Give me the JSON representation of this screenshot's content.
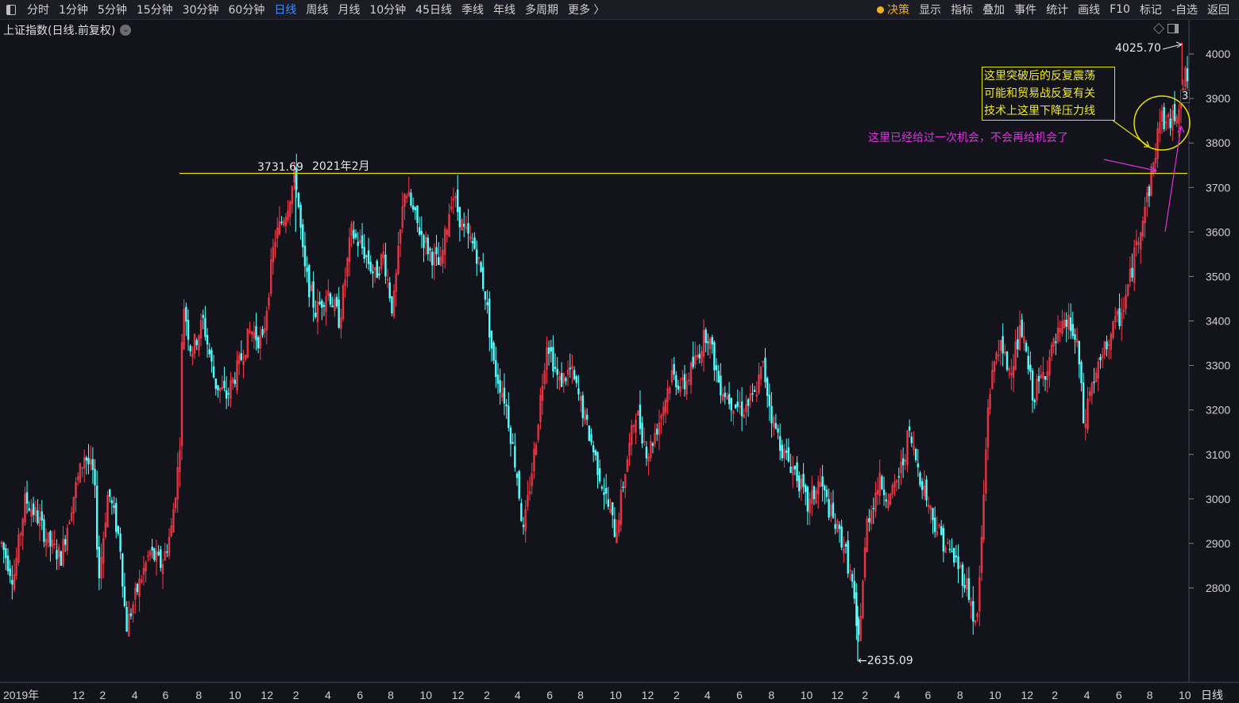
{
  "toolbar": {
    "left": [
      "分时",
      "1分钟",
      "5分钟",
      "15分钟",
      "30分钟",
      "60分钟",
      "日线",
      "周线",
      "月线",
      "10分钟",
      "45日线",
      "季线",
      "年线",
      "多周期",
      "更多 〉"
    ],
    "active": "日线",
    "right": [
      "决策",
      "显示",
      "指标",
      "叠加",
      "事件",
      "统计",
      "画线",
      "F10",
      "标记",
      "-自选",
      "返回"
    ]
  },
  "subtitle": "上证指数(日线.前复权)",
  "period_label": "日线",
  "annotations": {
    "high": "4025.70",
    "low": "2635.09",
    "resistance": "3731.69",
    "resistance_date": "2021年2月",
    "box_lines": [
      "这里突破后的反复震荡",
      "可能和贸易战反复有关",
      "技术上这里下降压力线"
    ],
    "pink_note": "这里已经给过一次机会，不会再给机会了",
    "clipped_label": "3"
  },
  "colors": {
    "up": "#ff3b4b",
    "down": "#54ffff",
    "line": "#e8e000",
    "pink": "#e030e0",
    "axis": "#d0d0d0"
  },
  "chart_data": {
    "type": "candlestick",
    "title": "上证指数(日线.前复权)",
    "ylim": [
      2600,
      4080
    ],
    "y_ticks": [
      2800,
      2900,
      3000,
      3100,
      3200,
      3300,
      3400,
      3500,
      3600,
      3700,
      3800,
      3900,
      4000
    ],
    "x_tick_labels": [
      {
        "label": "2019年",
        "x": 0.0
      },
      {
        "label": "12",
        "x": 0.065
      },
      {
        "label": "2",
        "x": 0.088
      },
      {
        "label": "4",
        "x": 0.115
      },
      {
        "label": "6",
        "x": 0.141
      },
      {
        "label": "8",
        "x": 0.169
      },
      {
        "label": "10",
        "x": 0.197
      },
      {
        "label": "12",
        "x": 0.224
      },
      {
        "label": "2",
        "x": 0.251
      },
      {
        "label": "4",
        "x": 0.278
      },
      {
        "label": "6",
        "x": 0.305
      },
      {
        "label": "8",
        "x": 0.331
      },
      {
        "label": "10",
        "x": 0.358
      },
      {
        "label": "12",
        "x": 0.385
      },
      {
        "label": "2",
        "x": 0.412
      },
      {
        "label": "4",
        "x": 0.438
      },
      {
        "label": "6",
        "x": 0.465
      },
      {
        "label": "8",
        "x": 0.491
      },
      {
        "label": "10",
        "x": 0.518
      },
      {
        "label": "12",
        "x": 0.545
      },
      {
        "label": "2",
        "x": 0.572
      },
      {
        "label": "4",
        "x": 0.598
      },
      {
        "label": "6",
        "x": 0.625
      },
      {
        "label": "8",
        "x": 0.652
      },
      {
        "label": "10",
        "x": 0.679
      },
      {
        "label": "12",
        "x": 0.705
      },
      {
        "label": "2",
        "x": 0.731
      },
      {
        "label": "4",
        "x": 0.758
      },
      {
        "label": "6",
        "x": 0.784
      },
      {
        "label": "8",
        "x": 0.811
      },
      {
        "label": "10",
        "x": 0.838
      },
      {
        "label": "12",
        "x": 0.865
      },
      {
        "label": "2",
        "x": 0.891
      },
      {
        "label": "4",
        "x": 0.918
      },
      {
        "label": "6",
        "x": 0.945
      },
      {
        "label": "8",
        "x": 0.971
      },
      {
        "label": "10",
        "x": 0.998
      }
    ],
    "x_tick_labels_note": "x given as fraction of timeline",
    "price_path": [
      [
        0.0,
        2900
      ],
      [
        0.01,
        2820
      ],
      [
        0.02,
        3000
      ],
      [
        0.03,
        2960
      ],
      [
        0.04,
        2900
      ],
      [
        0.05,
        2870
      ],
      [
        0.06,
        3000
      ],
      [
        0.07,
        3100
      ],
      [
        0.078,
        3050
      ],
      [
        0.082,
        2820
      ],
      [
        0.09,
        3020
      ],
      [
        0.1,
        2900
      ],
      [
        0.105,
        2710
      ],
      [
        0.115,
        2800
      ],
      [
        0.125,
        2880
      ],
      [
        0.135,
        2850
      ],
      [
        0.143,
        2930
      ],
      [
        0.15,
        3100
      ],
      [
        0.153,
        3450
      ],
      [
        0.16,
        3330
      ],
      [
        0.17,
        3400
      ],
      [
        0.18,
        3260
      ],
      [
        0.19,
        3230
      ],
      [
        0.2,
        3300
      ],
      [
        0.21,
        3380
      ],
      [
        0.22,
        3350
      ],
      [
        0.23,
        3580
      ],
      [
        0.24,
        3650
      ],
      [
        0.248,
        3731
      ],
      [
        0.255,
        3520
      ],
      [
        0.265,
        3420
      ],
      [
        0.275,
        3470
      ],
      [
        0.285,
        3400
      ],
      [
        0.295,
        3600
      ],
      [
        0.305,
        3560
      ],
      [
        0.315,
        3500
      ],
      [
        0.322,
        3550
      ],
      [
        0.33,
        3420
      ],
      [
        0.34,
        3700
      ],
      [
        0.35,
        3620
      ],
      [
        0.36,
        3560
      ],
      [
        0.37,
        3520
      ],
      [
        0.38,
        3690
      ],
      [
        0.39,
        3600
      ],
      [
        0.4,
        3560
      ],
      [
        0.408,
        3460
      ],
      [
        0.415,
        3300
      ],
      [
        0.425,
        3220
      ],
      [
        0.435,
        3050
      ],
      [
        0.44,
        2920
      ],
      [
        0.45,
        3120
      ],
      [
        0.46,
        3360
      ],
      [
        0.47,
        3260
      ],
      [
        0.48,
        3290
      ],
      [
        0.49,
        3200
      ],
      [
        0.5,
        3100
      ],
      [
        0.51,
        3000
      ],
      [
        0.518,
        2920
      ],
      [
        0.525,
        3050
      ],
      [
        0.535,
        3200
      ],
      [
        0.545,
        3100
      ],
      [
        0.555,
        3180
      ],
      [
        0.565,
        3280
      ],
      [
        0.575,
        3250
      ],
      [
        0.585,
        3310
      ],
      [
        0.595,
        3380
      ],
      [
        0.605,
        3260
      ],
      [
        0.615,
        3220
      ],
      [
        0.625,
        3200
      ],
      [
        0.635,
        3230
      ],
      [
        0.642,
        3300
      ],
      [
        0.65,
        3180
      ],
      [
        0.66,
        3100
      ],
      [
        0.67,
        3060
      ],
      [
        0.68,
        2980
      ],
      [
        0.69,
        3040
      ],
      [
        0.7,
        2960
      ],
      [
        0.71,
        2900
      ],
      [
        0.718,
        2800
      ],
      [
        0.722,
        2660
      ],
      [
        0.73,
        2950
      ],
      [
        0.74,
        3040
      ],
      [
        0.75,
        3000
      ],
      [
        0.76,
        3080
      ],
      [
        0.765,
        3150
      ],
      [
        0.775,
        3050
      ],
      [
        0.785,
        2960
      ],
      [
        0.795,
        2900
      ],
      [
        0.805,
        2860
      ],
      [
        0.815,
        2800
      ],
      [
        0.822,
        2700
      ],
      [
        0.826,
        2880
      ],
      [
        0.832,
        3220
      ],
      [
        0.84,
        3350
      ],
      [
        0.85,
        3290
      ],
      [
        0.86,
        3380
      ],
      [
        0.87,
        3230
      ],
      [
        0.88,
        3290
      ],
      [
        0.89,
        3360
      ],
      [
        0.9,
        3400
      ],
      [
        0.908,
        3330
      ],
      [
        0.913,
        3150
      ],
      [
        0.917,
        3240
      ],
      [
        0.925,
        3290
      ],
      [
        0.935,
        3370
      ],
      [
        0.945,
        3420
      ],
      [
        0.952,
        3500
      ],
      [
        0.96,
        3610
      ],
      [
        0.968,
        3700
      ],
      [
        0.972,
        3760
      ],
      [
        0.977,
        3860
      ],
      [
        0.985,
        3840
      ],
      [
        0.992,
        3880
      ],
      [
        0.998,
        3950
      ],
      [
        1.0,
        3940
      ]
    ],
    "price_path_note": "approximate close trajectory estimated from candles; x as timeline fraction",
    "notable_points": {
      "high": 4025.7,
      "low": 2635.09,
      "resistance": 3731.69
    }
  }
}
